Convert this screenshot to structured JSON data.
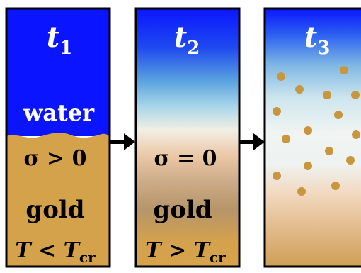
{
  "panels": [
    {
      "time_label": {
        "main": "t",
        "sub": "1"
      },
      "lines": {
        "upper": "water",
        "sigma": "σ > 0",
        "lower": "gold",
        "temp": {
          "var": "T",
          "op": " < ",
          "T2": "T",
          "sub": "cr"
        }
      }
    },
    {
      "time_label": {
        "main": "t",
        "sub": "2"
      },
      "lines": {
        "sigma": "σ = 0",
        "lower": "gold",
        "temp": {
          "var": "T",
          "op": " > ",
          "T2": "T",
          "sub": "cr"
        }
      }
    },
    {
      "time_label": {
        "main": "t",
        "sub": "3"
      }
    }
  ],
  "colors": {
    "water": "#0a14ff",
    "gold": "#d4a24a",
    "particle": "#c9963e",
    "outline": "#000000",
    "text_light": "#ffffff",
    "text_dark": "#000000"
  }
}
